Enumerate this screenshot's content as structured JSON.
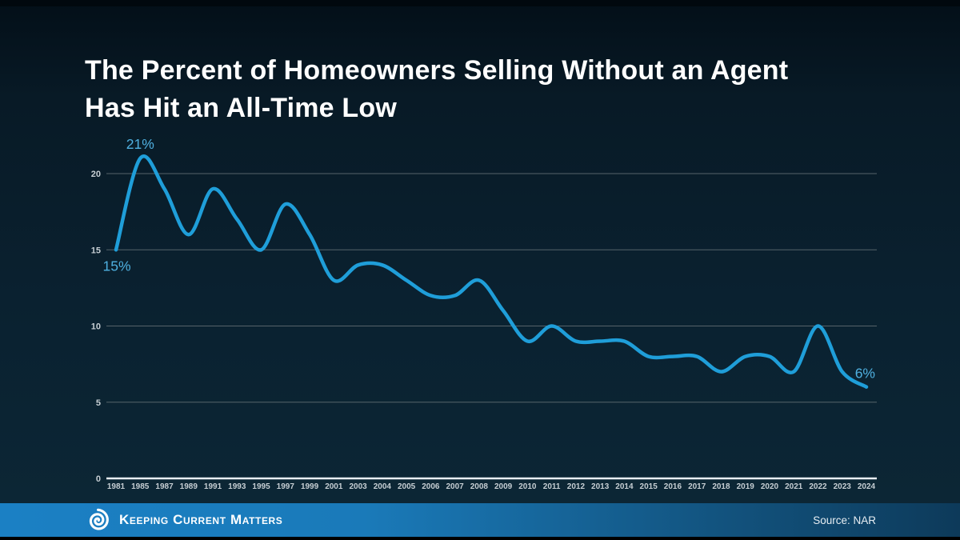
{
  "slide": {
    "title": "The Percent of Homeowners Selling Without an Agent Has Hit an All-Time Low"
  },
  "chart_data": {
    "type": "line",
    "title": "The Percent of Homeowners Selling Without an Agent Has Hit an All-Time Low",
    "categories": [
      "1981",
      "1985",
      "1987",
      "1989",
      "1991",
      "1993",
      "1995",
      "1997",
      "1999",
      "2001",
      "2003",
      "2004",
      "2005",
      "2006",
      "2007",
      "2008",
      "2009",
      "2010",
      "2011",
      "2012",
      "2013",
      "2014",
      "2015",
      "2016",
      "2017",
      "2018",
      "2019",
      "2020",
      "2021",
      "2022",
      "2023",
      "2024"
    ],
    "values": [
      15,
      21,
      19,
      16,
      19,
      17,
      15,
      18,
      16,
      13,
      14,
      14,
      13,
      12,
      12,
      13,
      11,
      9,
      10,
      9,
      9,
      9,
      8,
      8,
      8,
      7,
      8,
      8,
      7,
      10,
      7,
      6
    ],
    "xlabel": "",
    "ylabel": "",
    "yticks": [
      0,
      5,
      10,
      15,
      20
    ],
    "ylim": [
      0,
      21.5
    ],
    "grid": true,
    "legend": "none",
    "smoothing": "spline",
    "annotations": [
      {
        "year": "1981",
        "text": "15%",
        "placement": "below-left"
      },
      {
        "year": "1985",
        "text": "21%",
        "placement": "above"
      },
      {
        "year": "2024",
        "text": "6%",
        "placement": "upper-right-end"
      }
    ]
  },
  "footer": {
    "brand": "Keeping Current Matters",
    "source": "Source: NAR"
  },
  "colors": {
    "line": "#1f9ed9",
    "annotation_text": "#4fb0e0",
    "grid": "#56646a",
    "axis": "#e9eff2",
    "tick_text": "#c6ced3",
    "title_text": "#ffffff",
    "footer_left": "#1b80c4",
    "footer_right": "#0d3a5a",
    "background_top": "#030f18",
    "background_bottom": "#0c2736"
  },
  "icons": {
    "kcm_swirl": "kcm-swirl-logo-icon"
  }
}
